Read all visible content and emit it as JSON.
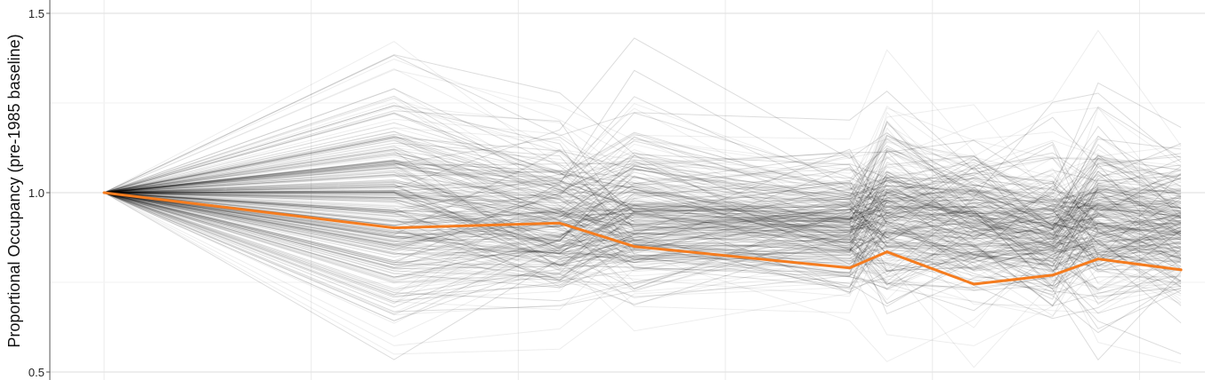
{
  "chart_data": {
    "type": "line",
    "title": "",
    "xlabel": "",
    "ylabel": "Proportional Occupancy (pre-1985 baseline)",
    "ylim": [
      0.5,
      1.5
    ],
    "xlim": [
      0,
      13
    ],
    "yticks": [
      {
        "value": 0.5,
        "label": "0.5"
      },
      {
        "value": 1.0,
        "label": "1.0"
      },
      {
        "value": 1.5,
        "label": "1.5"
      }
    ],
    "y_minor_gridlines": [
      0.75,
      1.25
    ],
    "x_gridlines": [
      0,
      2.5,
      5,
      7.5,
      10,
      12.5
    ],
    "grid": true,
    "legend": "none",
    "background_series": {
      "description_count": 420,
      "color": "#000000",
      "opacity": 0.07,
      "x": [
        0,
        3.5,
        5.5,
        6.4,
        9,
        9.45,
        10.5,
        11.45,
        12,
        13
      ]
    },
    "series": [
      {
        "highlight": true,
        "color": "#f57c1f",
        "x": [
          0,
          3.5,
          5.5,
          6.4,
          9,
          9.45,
          10.5,
          11.45,
          12,
          13
        ],
        "values": [
          1.0,
          0.902,
          0.915,
          0.85,
          0.79,
          0.835,
          0.745,
          0.77,
          0.815,
          0.785
        ]
      }
    ]
  }
}
